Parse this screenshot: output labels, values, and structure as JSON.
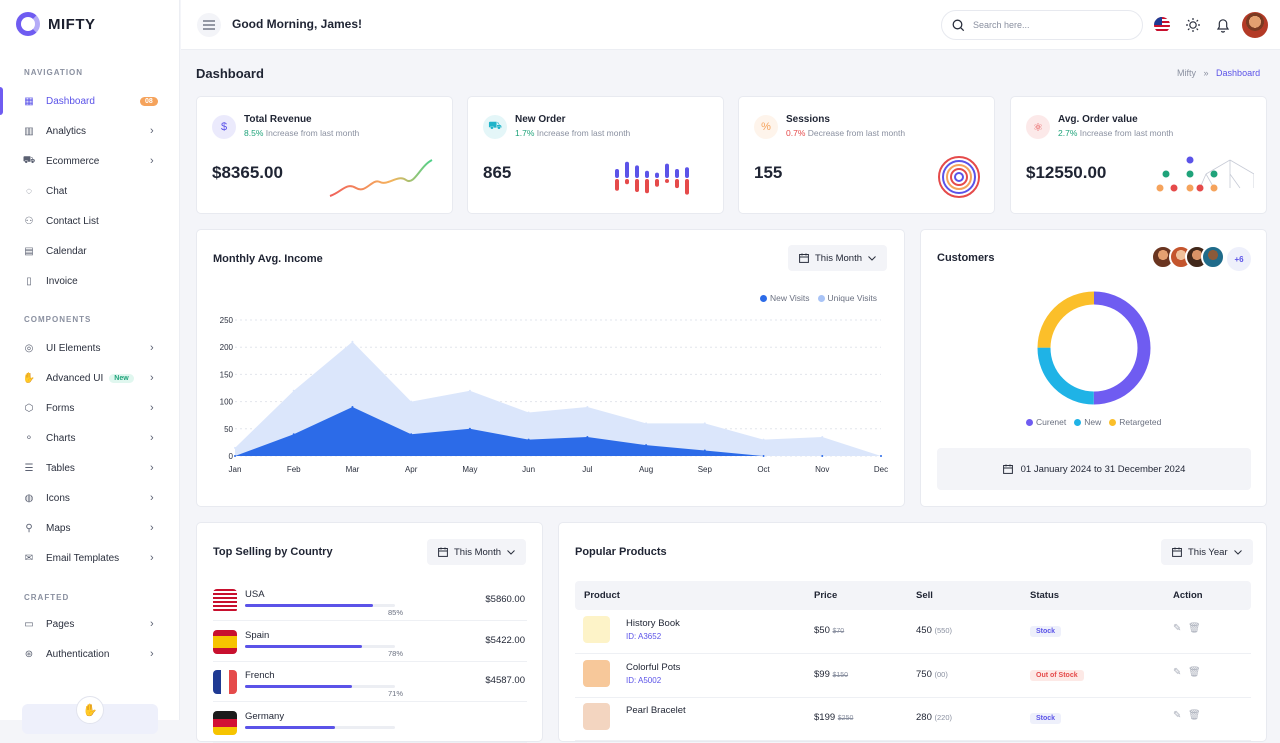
{
  "brand": {
    "name": "MIFTY"
  },
  "sidebar": {
    "sections": {
      "navigation": "NAVIGATION",
      "components": "COMPONENTS",
      "crafted": "CRAFTED"
    },
    "items": [
      {
        "label": "Dashboard",
        "badge": "08",
        "icon": "grid-icon"
      },
      {
        "label": "Analytics",
        "icon": "analytics-icon"
      },
      {
        "label": "Ecommerce",
        "icon": "cart-icon"
      },
      {
        "label": "Chat",
        "icon": "chat-icon"
      },
      {
        "label": "Contact List",
        "icon": "contacts-icon"
      },
      {
        "label": "Calendar",
        "icon": "calendar-icon"
      },
      {
        "label": "Invoice",
        "icon": "invoice-icon"
      },
      {
        "label": "UI Elements",
        "icon": "ui-icon"
      },
      {
        "label": "Advanced UI",
        "badge": "New",
        "icon": "hand-icon"
      },
      {
        "label": "Forms",
        "icon": "forms-icon"
      },
      {
        "label": "Charts",
        "icon": "charts-icon"
      },
      {
        "label": "Tables",
        "icon": "tables-icon"
      },
      {
        "label": "Icons",
        "icon": "icons-icon"
      },
      {
        "label": "Maps",
        "icon": "map-pin-icon"
      },
      {
        "label": "Email Templates",
        "icon": "mail-icon"
      },
      {
        "label": "Pages",
        "icon": "pages-icon"
      },
      {
        "label": "Authentication",
        "icon": "auth-icon"
      }
    ]
  },
  "header": {
    "greeting": "Good Morning, James!",
    "search_placeholder": "Search here..."
  },
  "page": {
    "title": "Dashboard",
    "breadcrumb": [
      "Mifty",
      "Dashboard"
    ]
  },
  "stats": [
    {
      "title": "Total Revenue",
      "pct": "8.5%",
      "trend": "up",
      "desc": "Increase from last month",
      "value": "$8365.00",
      "icon": "dollar-icon",
      "color": "#5b53e8"
    },
    {
      "title": "New Order",
      "pct": "1.7%",
      "trend": "up",
      "desc": "Increase from last month",
      "value": "865",
      "icon": "cart-icon",
      "color": "#1fb3c9"
    },
    {
      "title": "Sessions",
      "pct": "0.7%",
      "trend": "down",
      "desc": "Decrease from last month",
      "value": "155",
      "icon": "percent-icon",
      "color": "#f5a35c"
    },
    {
      "title": "Avg. Order value",
      "pct": "2.7%",
      "trend": "up",
      "desc": "Increase from last month",
      "value": "$12550.00",
      "icon": "atom-icon",
      "color": "#e54a4a"
    }
  ],
  "income": {
    "title": "Monthly Avg. Income",
    "filter": "This Month"
  },
  "customers": {
    "title": "Customers",
    "more": "+6",
    "date_range": "01 January 2024 to 31 December 2024",
    "legend": [
      {
        "name": "Curenet",
        "color": "#6f5cf1"
      },
      {
        "name": "New",
        "color": "#1fb3e6"
      },
      {
        "name": "Retargeted",
        "color": "#fbbf2a"
      }
    ]
  },
  "countries": {
    "title": "Top Selling by Country",
    "filter": "This Month",
    "rows": [
      {
        "name": "USA",
        "pct": "85%",
        "progress": 0.85,
        "amount": "$5860.00"
      },
      {
        "name": "Spain",
        "pct": "78%",
        "progress": 0.78,
        "amount": "$5422.00"
      },
      {
        "name": "French",
        "pct": "71%",
        "progress": 0.71,
        "amount": "$4587.00"
      },
      {
        "name": "Germany",
        "pct": "",
        "progress": 0.6,
        "amount": ""
      }
    ]
  },
  "products": {
    "title": "Popular Products",
    "filter": "This Year",
    "columns": [
      "Product",
      "Price",
      "Sell",
      "Status",
      "Action"
    ],
    "rows": [
      {
        "name": "History Book",
        "id": "ID: A3652",
        "price": "$50",
        "old": "$70",
        "sell": "450",
        "sell_of": "(550)",
        "status": "Stock",
        "ok": true,
        "bg": "#fdf3c8"
      },
      {
        "name": "Colorful Pots",
        "id": "ID: A5002",
        "price": "$99",
        "old": "$150",
        "sell": "750",
        "sell_of": "(00)",
        "status": "Out of Stock",
        "ok": false,
        "bg": "#f7c89a"
      },
      {
        "name": "Pearl Bracelet",
        "id": "",
        "price": "$199",
        "old": "$250",
        "sell": "280",
        "sell_of": "(220)",
        "status": "Stock",
        "ok": true,
        "bg": "#f3d5c0"
      }
    ]
  },
  "chart_data": {
    "type": "area",
    "x": [
      "Jan",
      "Feb",
      "Mar",
      "Apr",
      "May",
      "Jun",
      "Jul",
      "Aug",
      "Sep",
      "Oct",
      "Nov",
      "Dec"
    ],
    "ylim": [
      0,
      250
    ],
    "yticks": [
      "0",
      "50",
      "100",
      "150",
      "200",
      "250"
    ],
    "series": [
      {
        "name": "Unique Visits",
        "color": "#dbe6fb",
        "values": [
          15,
          120,
          210,
          100,
          120,
          80,
          90,
          60,
          60,
          30,
          35,
          0
        ]
      },
      {
        "name": "New Visits",
        "color": "#2c6be8",
        "values": [
          0,
          40,
          90,
          40,
          50,
          30,
          35,
          20,
          10,
          0,
          0,
          0
        ]
      }
    ]
  },
  "donut": {
    "values": [
      {
        "name": "Curenet",
        "value": 50
      },
      {
        "name": "New",
        "value": 25
      },
      {
        "name": "Retargeted",
        "value": 25
      }
    ]
  }
}
